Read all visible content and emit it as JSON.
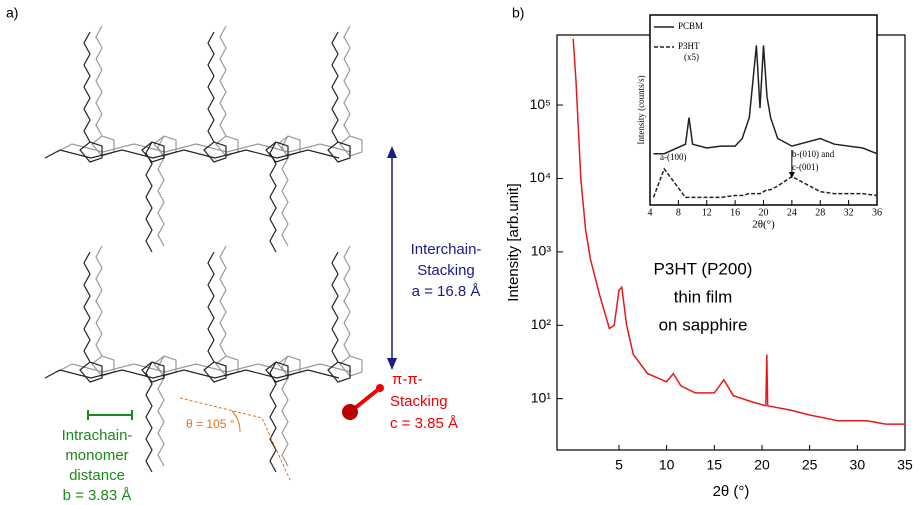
{
  "diagram": {
    "panel_a_label": "a)",
    "panel_b_label": "b)",
    "interchain": [
      "Interchain-",
      "Stacking",
      "a = 16.8 Å"
    ],
    "pi_stacking": [
      "π-π-",
      "Stacking",
      "c = 3.85 Å"
    ],
    "intrachain": [
      "Intrachain-",
      "monomer",
      "distance",
      "b = 3.83 Å"
    ],
    "angle": "θ = 105 °"
  },
  "chart_data": [
    {
      "type": "line",
      "yscale": "log",
      "xlabel": "2θ  (°)",
      "ylabel": "Intensity [arb.unit]",
      "annotations": [
        "P3HT (P200)",
        "thin film",
        "on sapphire"
      ],
      "xlim": [
        -1.5,
        35
      ],
      "xticks": [
        5,
        10,
        15,
        20,
        25,
        30,
        35
      ],
      "ylim": [
        2,
        900000
      ],
      "yticks": [
        {
          "value": 10,
          "label": "10¹"
        },
        {
          "value": 100,
          "label": "10²"
        },
        {
          "value": 1000,
          "label": "10³"
        },
        {
          "value": 10000,
          "label": "10⁴"
        },
        {
          "value": 100000,
          "label": "10⁵"
        }
      ],
      "color": "#e41a1c",
      "x": [
        0.2,
        0.5,
        1,
        1.5,
        2,
        3,
        4,
        4.5,
        5,
        5.3,
        5.8,
        6.5,
        8,
        10,
        10.7,
        11.5,
        13,
        15,
        16,
        17,
        19,
        20.4,
        20.5,
        20.6,
        23,
        25,
        28,
        31,
        33,
        35
      ],
      "values": [
        800000,
        200000,
        10000,
        2000,
        800,
        250,
        90,
        100,
        300,
        330,
        100,
        40,
        22,
        17,
        22,
        15,
        12,
        12,
        18,
        11,
        9,
        8,
        40,
        8,
        7,
        6,
        5,
        5,
        4.5,
        4.5
      ]
    },
    {
      "type": "line",
      "xlabel": "2θ(°)",
      "ylabel": "Intensity (counts/s)",
      "xlim": [
        4,
        36
      ],
      "xticks": [
        4,
        8,
        12,
        16,
        20,
        24,
        28,
        32,
        36
      ],
      "ylim": [
        0,
        100
      ],
      "annotations": [
        "a-(100)",
        "b-(010) and",
        "c-(001)"
      ],
      "x": [
        4.5,
        6,
        9,
        9.5,
        10,
        12,
        14,
        16,
        17,
        18,
        19,
        19.5,
        20,
        20.5,
        21,
        22,
        24,
        28,
        30,
        34,
        36
      ],
      "series": [
        {
          "name": "PCBM",
          "color": "#222",
          "dash": false,
          "values": [
            27,
            27,
            32,
            46,
            32,
            30,
            31,
            31,
            35,
            46,
            84,
            51,
            84,
            57,
            46,
            35,
            31,
            35,
            32,
            30,
            27
          ]
        },
        {
          "name": "P3HT (x5)",
          "color": "#222",
          "dash": true,
          "values": [
            4,
            19,
            4,
            4,
            4,
            4,
            4,
            5,
            5,
            6,
            6,
            6,
            7,
            8,
            8,
            10,
            15,
            7,
            6,
            6,
            5
          ]
        }
      ]
    }
  ]
}
